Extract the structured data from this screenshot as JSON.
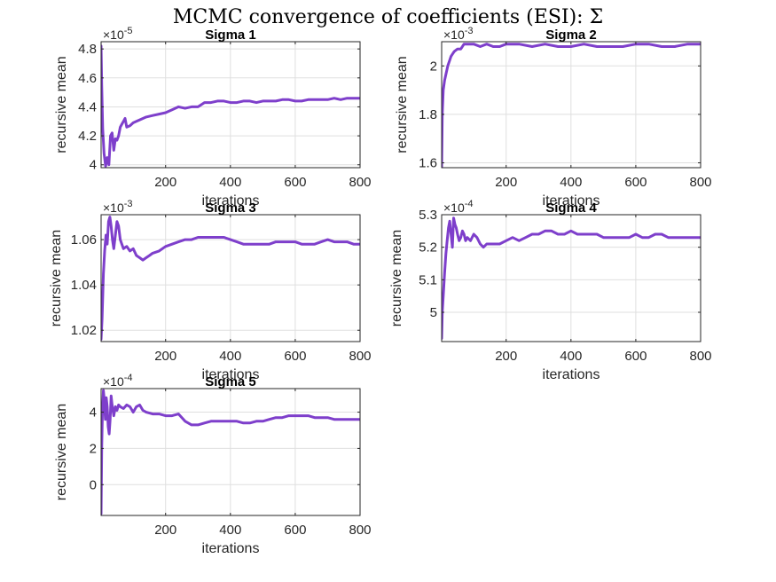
{
  "figure": {
    "title": "MCMC convergence of coefficients (ESI): Σ"
  },
  "chart_data": [
    {
      "type": "line",
      "title": "Sigma 1",
      "xlabel": "iterations",
      "ylabel": "recursive mean",
      "exponent_label": "×10",
      "exponent": "-5",
      "xlim": [
        1,
        800
      ],
      "ylim": [
        3.98,
        4.85
      ],
      "xticks": [
        200,
        400,
        600,
        800
      ],
      "yticks": [
        4.0,
        4.2,
        4.4,
        4.6,
        4.8
      ],
      "yticklabels": [
        "4",
        "4.2",
        "4.4",
        "4.6",
        "4.8"
      ],
      "grid": true,
      "series": [
        {
          "color": "#7e3fcb",
          "x": [
            1,
            3,
            6,
            10,
            15,
            20,
            25,
            30,
            35,
            40,
            45,
            50,
            55,
            60,
            65,
            70,
            75,
            80,
            90,
            100,
            110,
            120,
            140,
            160,
            180,
            200,
            220,
            240,
            260,
            280,
            300,
            320,
            340,
            360,
            380,
            400,
            420,
            440,
            460,
            480,
            500,
            520,
            540,
            560,
            580,
            600,
            620,
            640,
            660,
            680,
            700,
            720,
            740,
            760,
            780,
            800
          ],
          "y": [
            4.82,
            4.55,
            4.25,
            4.08,
            3.99,
            4.05,
            4.0,
            4.2,
            4.22,
            4.1,
            4.18,
            4.17,
            4.2,
            4.26,
            4.28,
            4.3,
            4.32,
            4.26,
            4.27,
            4.29,
            4.3,
            4.31,
            4.33,
            4.34,
            4.35,
            4.36,
            4.38,
            4.4,
            4.39,
            4.4,
            4.4,
            4.43,
            4.43,
            4.44,
            4.44,
            4.43,
            4.43,
            4.44,
            4.44,
            4.43,
            4.44,
            4.44,
            4.44,
            4.45,
            4.45,
            4.44,
            4.44,
            4.45,
            4.45,
            4.45,
            4.45,
            4.46,
            4.45,
            4.46,
            4.46,
            4.46
          ]
        }
      ]
    },
    {
      "type": "line",
      "title": "Sigma 2",
      "xlabel": "iterations",
      "ylabel": "recursive mean",
      "exponent_label": "×10",
      "exponent": "-3",
      "xlim": [
        1,
        800
      ],
      "ylim": [
        1.58,
        2.1
      ],
      "xticks": [
        200,
        400,
        600,
        800
      ],
      "yticks": [
        1.6,
        1.8,
        2.0
      ],
      "yticklabels": [
        "1.6",
        "1.8",
        "2"
      ],
      "grid": true,
      "series": [
        {
          "color": "#7e3fcb",
          "x": [
            1,
            3,
            6,
            10,
            15,
            20,
            25,
            30,
            35,
            40,
            50,
            60,
            70,
            80,
            100,
            120,
            140,
            160,
            180,
            200,
            240,
            280,
            320,
            360,
            400,
            440,
            480,
            520,
            560,
            600,
            640,
            680,
            720,
            760,
            800
          ],
          "y": [
            1.58,
            1.8,
            1.9,
            1.94,
            1.97,
            2.0,
            2.02,
            2.04,
            2.05,
            2.06,
            2.07,
            2.07,
            2.09,
            2.09,
            2.09,
            2.08,
            2.09,
            2.08,
            2.08,
            2.09,
            2.09,
            2.08,
            2.09,
            2.08,
            2.08,
            2.09,
            2.08,
            2.08,
            2.08,
            2.09,
            2.09,
            2.08,
            2.08,
            2.09,
            2.09
          ]
        }
      ]
    },
    {
      "type": "line",
      "title": "Sigma 3",
      "xlabel": "iterations",
      "ylabel": "recursive mean",
      "exponent_label": "×10",
      "exponent": "-3",
      "xlim": [
        1,
        800
      ],
      "ylim": [
        1.015,
        1.071
      ],
      "xticks": [
        200,
        400,
        600,
        800
      ],
      "yticks": [
        1.02,
        1.04,
        1.06
      ],
      "yticklabels": [
        "1.02",
        "1.04",
        "1.06"
      ],
      "grid": true,
      "series": [
        {
          "color": "#7e3fcb",
          "x": [
            1,
            4,
            8,
            12,
            16,
            20,
            24,
            28,
            32,
            36,
            40,
            45,
            50,
            55,
            60,
            65,
            70,
            80,
            90,
            100,
            110,
            120,
            130,
            140,
            150,
            160,
            180,
            200,
            220,
            240,
            260,
            280,
            300,
            320,
            340,
            360,
            380,
            400,
            420,
            440,
            460,
            480,
            500,
            520,
            540,
            560,
            580,
            600,
            620,
            640,
            660,
            680,
            700,
            720,
            740,
            760,
            780,
            800
          ],
          "y": [
            1.016,
            1.025,
            1.045,
            1.055,
            1.062,
            1.058,
            1.068,
            1.07,
            1.066,
            1.06,
            1.056,
            1.062,
            1.068,
            1.066,
            1.06,
            1.058,
            1.056,
            1.057,
            1.055,
            1.056,
            1.053,
            1.052,
            1.051,
            1.052,
            1.053,
            1.054,
            1.055,
            1.057,
            1.058,
            1.059,
            1.06,
            1.06,
            1.061,
            1.061,
            1.061,
            1.061,
            1.061,
            1.06,
            1.059,
            1.058,
            1.058,
            1.058,
            1.058,
            1.058,
            1.059,
            1.059,
            1.059,
            1.059,
            1.058,
            1.058,
            1.058,
            1.059,
            1.06,
            1.059,
            1.059,
            1.059,
            1.058,
            1.058
          ]
        }
      ]
    },
    {
      "type": "line",
      "title": "Sigma 4",
      "xlabel": "iterations",
      "ylabel": "recursive mean",
      "exponent_label": "×10",
      "exponent": "-4",
      "xlim": [
        1,
        800
      ],
      "ylim": [
        4.91,
        5.3
      ],
      "xticks": [
        200,
        400,
        600,
        800
      ],
      "yticks": [
        5.0,
        5.1,
        5.2,
        5.3
      ],
      "yticklabels": [
        "5",
        "5.1",
        "5.2",
        "5.3"
      ],
      "grid": true,
      "series": [
        {
          "color": "#7e3fcb",
          "x": [
            1,
            3,
            6,
            10,
            14,
            18,
            22,
            26,
            30,
            34,
            38,
            42,
            46,
            50,
            55,
            60,
            65,
            70,
            75,
            80,
            90,
            100,
            110,
            120,
            130,
            140,
            160,
            180,
            200,
            220,
            240,
            260,
            280,
            300,
            320,
            340,
            360,
            380,
            400,
            420,
            440,
            460,
            480,
            500,
            520,
            540,
            560,
            580,
            600,
            620,
            640,
            660,
            680,
            700,
            720,
            740,
            760,
            780,
            800
          ],
          "y": [
            4.92,
            5.0,
            5.05,
            5.12,
            5.18,
            5.22,
            5.26,
            5.28,
            5.24,
            5.2,
            5.29,
            5.27,
            5.26,
            5.24,
            5.22,
            5.23,
            5.25,
            5.24,
            5.22,
            5.23,
            5.22,
            5.24,
            5.23,
            5.21,
            5.2,
            5.21,
            5.21,
            5.21,
            5.22,
            5.23,
            5.22,
            5.23,
            5.24,
            5.24,
            5.25,
            5.25,
            5.24,
            5.24,
            5.25,
            5.24,
            5.24,
            5.24,
            5.24,
            5.23,
            5.23,
            5.23,
            5.23,
            5.23,
            5.24,
            5.23,
            5.23,
            5.24,
            5.24,
            5.23,
            5.23,
            5.23,
            5.23,
            5.23,
            5.23
          ]
        }
      ]
    },
    {
      "type": "line",
      "title": "Sigma 5",
      "xlabel": "iterations",
      "ylabel": "recursive mean",
      "exponent_label": "×10",
      "exponent": "-4",
      "xlim": [
        1,
        800
      ],
      "ylim": [
        -1.7,
        5.3
      ],
      "xticks": [
        200,
        400,
        600,
        800
      ],
      "yticks": [
        0,
        2,
        4
      ],
      "yticklabels": [
        "0",
        "2",
        "4"
      ],
      "grid": true,
      "series": [
        {
          "color": "#7e3fcb",
          "x": [
            1,
            3,
            5,
            8,
            11,
            14,
            17,
            20,
            23,
            26,
            29,
            32,
            35,
            40,
            45,
            50,
            55,
            60,
            70,
            80,
            90,
            100,
            110,
            120,
            130,
            140,
            160,
            180,
            200,
            220,
            240,
            260,
            280,
            300,
            320,
            340,
            360,
            380,
            400,
            420,
            440,
            460,
            480,
            500,
            520,
            540,
            560,
            580,
            600,
            620,
            640,
            660,
            680,
            700,
            720,
            740,
            760,
            780,
            800
          ],
          "y": [
            -1.6,
            2.0,
            4.0,
            5.2,
            4.6,
            3.6,
            4.8,
            4.3,
            3.2,
            2.8,
            3.6,
            4.9,
            4.4,
            3.8,
            4.3,
            4.1,
            4.4,
            4.3,
            4.2,
            4.4,
            4.3,
            4.0,
            4.3,
            4.4,
            4.1,
            4.0,
            3.9,
            3.9,
            3.8,
            3.8,
            3.9,
            3.5,
            3.3,
            3.3,
            3.4,
            3.5,
            3.5,
            3.5,
            3.5,
            3.5,
            3.4,
            3.4,
            3.5,
            3.5,
            3.6,
            3.7,
            3.7,
            3.8,
            3.8,
            3.8,
            3.8,
            3.7,
            3.7,
            3.7,
            3.6,
            3.6,
            3.6,
            3.6,
            3.6
          ]
        }
      ]
    }
  ]
}
